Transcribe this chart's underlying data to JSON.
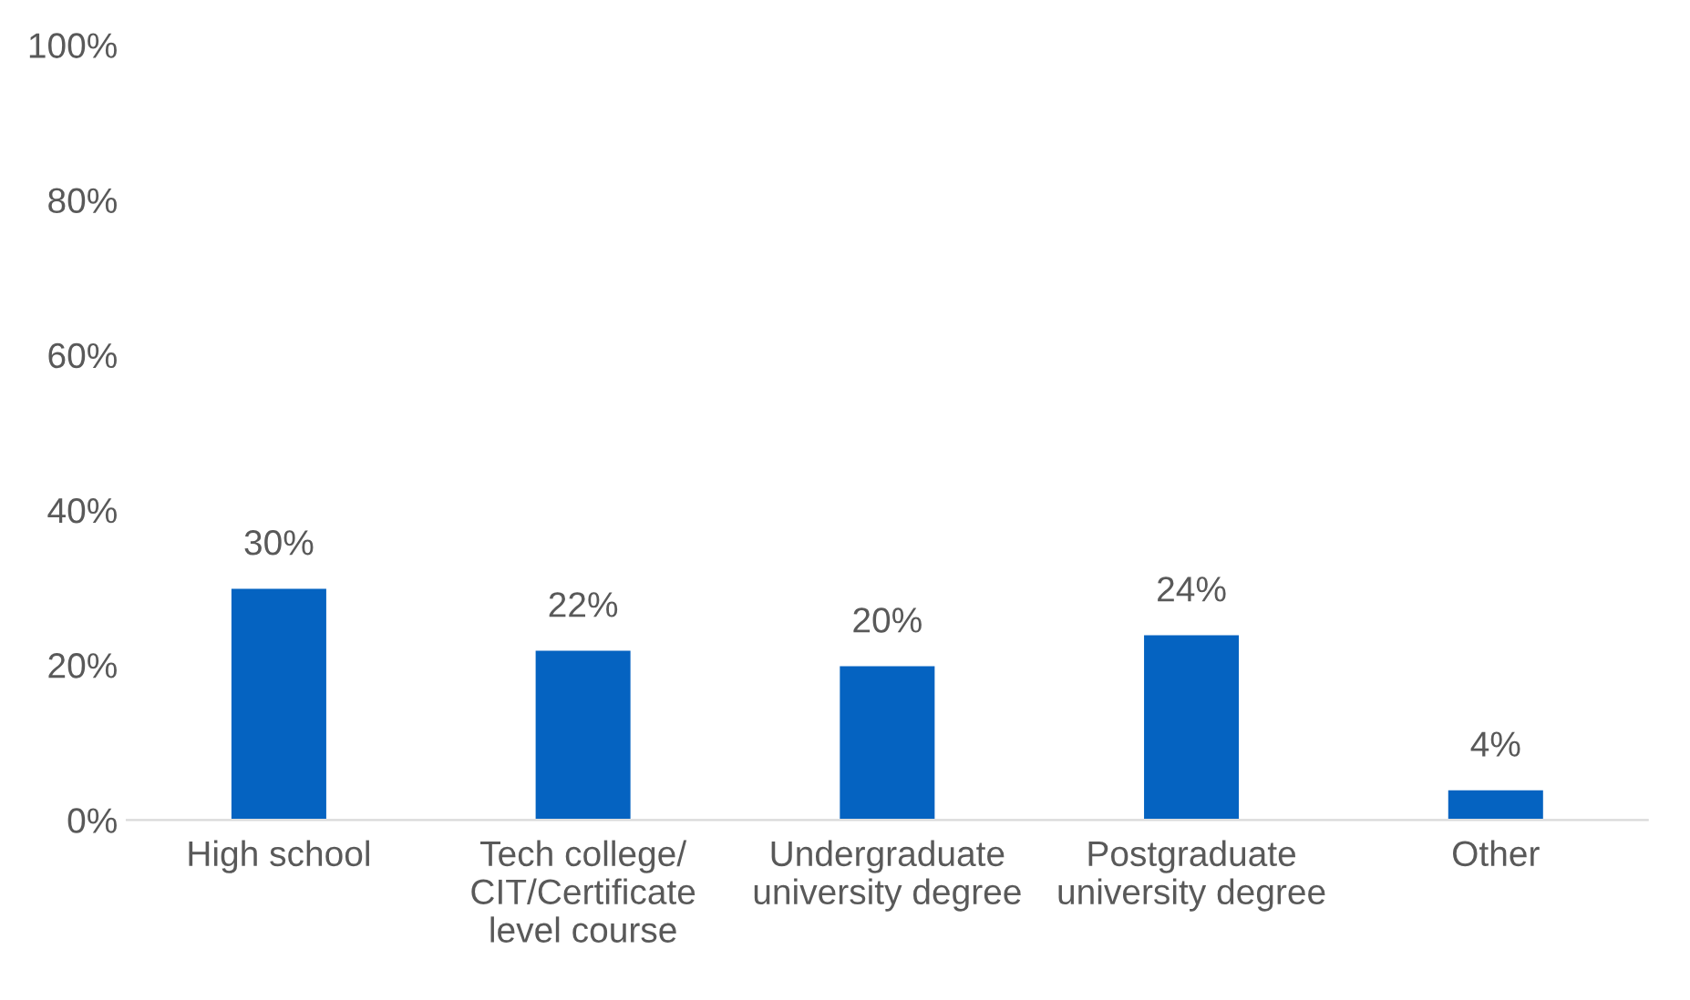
{
  "chart_data": {
    "type": "bar",
    "categories": [
      "High school",
      "Tech college/\nCIT/Certificate\nlevel course",
      "Undergraduate\nuniversity degree",
      "Postgraduate\nuniversity degree",
      "Other"
    ],
    "values": [
      30,
      22,
      20,
      24,
      4
    ],
    "value_labels": [
      "30%",
      "22%",
      "20%",
      "24%",
      "4%"
    ],
    "color": "#0563c1",
    "ylim": [
      0,
      100
    ],
    "yticks": [
      {
        "value": 0,
        "label": "0%"
      },
      {
        "value": 20,
        "label": "20%"
      },
      {
        "value": 40,
        "label": "40%"
      },
      {
        "value": 60,
        "label": "60%"
      },
      {
        "value": 80,
        "label": "80%"
      },
      {
        "value": 100,
        "label": "100%"
      }
    ],
    "grid": false
  }
}
